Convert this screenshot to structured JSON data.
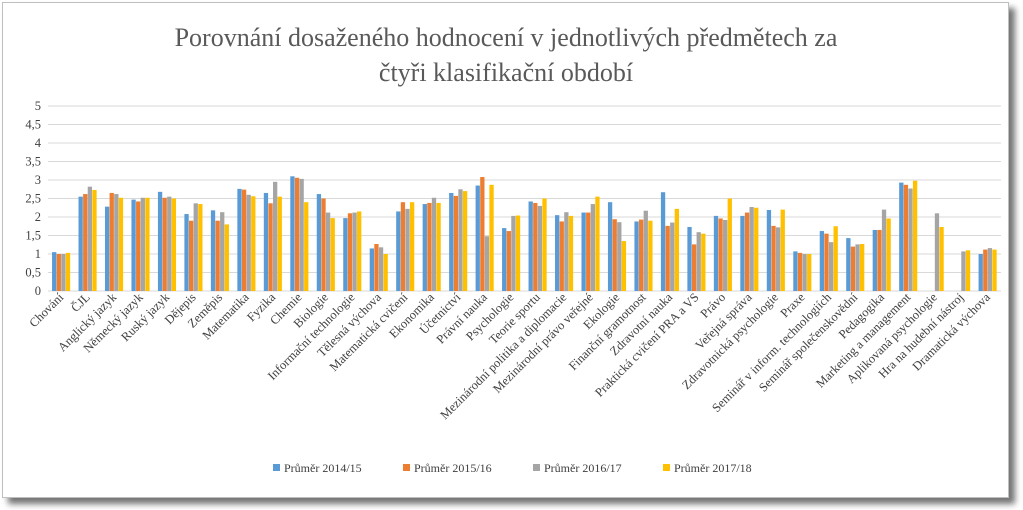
{
  "chart_data": {
    "type": "bar",
    "title_lines": [
      "Porovnání dosaženého hodnocení v jednotlivých předmětech za",
      "čtyři klasifikační období"
    ],
    "ylim": [
      0,
      5
    ],
    "yticks": [
      "0",
      "0,5",
      "1",
      "1,5",
      "2",
      "2,5",
      "3",
      "3,5",
      "4",
      "4,5",
      "5"
    ],
    "grid": true,
    "legend_position": "bottom",
    "categories": [
      "Chování",
      "ČJL",
      "Anglický jazyk",
      "Německý jazyk",
      "Ruský jazyk",
      "Dějepis",
      "Zeměpis",
      "Matematika",
      "Fyzika",
      "Chemie",
      "Biologie",
      "Informační technologie",
      "Tělesná výchova",
      "Matematická cvičení",
      "Ekonomika",
      "Účetnictví",
      "Právní nauka",
      "Psychologie",
      "Teorie sportu",
      "Mezinárodní politika a diplomacie",
      "Mezinárodní právo veřejné",
      "Ekologie",
      "Finanční gramotnost",
      "Zdravotní nauka",
      "Praktická cvičení PRA a VS",
      "Právo",
      "Veřejná správa",
      "Zdravotnická psychologie",
      "Praxe",
      "Seminář v inform. technologiích",
      "Seminář společenskovědní",
      "Pedagogika",
      "Marketing a management",
      "Aplikovaná psychologie",
      "Hra na hudební nástroj",
      "Dramatická výchova"
    ],
    "series": [
      {
        "name": "Průměr 2014/15",
        "color": "#5b9bd5",
        "values": [
          1.05,
          2.55,
          2.28,
          2.47,
          2.68,
          2.08,
          2.18,
          2.76,
          2.65,
          3.1,
          2.62,
          1.97,
          1.15,
          2.15,
          2.35,
          2.65,
          2.85,
          1.7,
          2.42,
          2.05,
          2.12,
          2.4,
          1.88,
          2.67,
          1.73,
          2.03,
          2.03,
          2.19,
          1.07,
          1.62,
          1.43,
          1.65,
          2.93,
          null,
          null,
          1.0
        ]
      },
      {
        "name": "Průměr 2015/16",
        "color": "#ed7d31",
        "values": [
          1.0,
          2.62,
          2.65,
          2.42,
          2.52,
          1.9,
          1.9,
          2.74,
          2.37,
          3.06,
          2.5,
          2.1,
          1.27,
          2.4,
          2.38,
          2.57,
          3.08,
          1.62,
          2.38,
          1.88,
          2.12,
          1.94,
          1.93,
          1.76,
          1.26,
          1.96,
          2.12,
          1.76,
          1.03,
          1.55,
          1.2,
          1.65,
          2.87,
          null,
          null,
          1.12
        ]
      },
      {
        "name": "Průměr 2016/17",
        "color": "#a5a5a5",
        "values": [
          1.0,
          2.82,
          2.62,
          2.52,
          2.55,
          2.37,
          2.13,
          2.6,
          2.95,
          3.03,
          2.12,
          2.12,
          1.18,
          2.22,
          2.52,
          2.75,
          1.48,
          2.03,
          2.3,
          2.13,
          2.35,
          1.86,
          2.17,
          1.85,
          1.59,
          1.92,
          2.27,
          1.72,
          1.0,
          1.32,
          1.26,
          2.2,
          2.77,
          2.1,
          1.07,
          1.16
        ]
      },
      {
        "name": "Průměr 2017/18",
        "color": "#ffc000",
        "values": [
          1.03,
          2.73,
          2.52,
          2.52,
          2.5,
          2.35,
          1.8,
          2.56,
          2.55,
          2.4,
          1.97,
          2.15,
          1.0,
          2.4,
          2.38,
          2.7,
          2.87,
          2.04,
          2.5,
          2.03,
          2.55,
          1.35,
          1.9,
          2.22,
          1.55,
          2.5,
          2.25,
          2.2,
          1.0,
          1.75,
          1.27,
          1.96,
          2.98,
          1.73,
          1.1,
          1.12
        ]
      }
    ]
  }
}
